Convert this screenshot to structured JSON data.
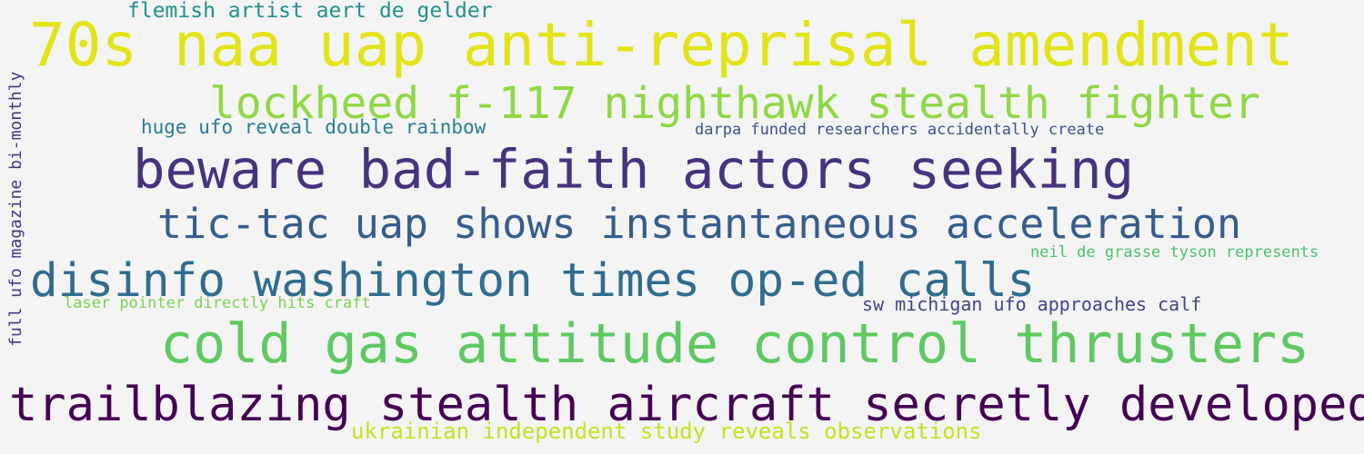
{
  "words": [
    {
      "text": "70s naa uap anti-reprisal amendment",
      "color": "#e2e418"
    },
    {
      "text": "lockheed f-117 nighthawk stealth fighter",
      "color": "#8fd744"
    },
    {
      "text": "beware bad-faith actors seeking",
      "color": "#46327e"
    },
    {
      "text": "tic-tac uap shows instantaneous acceleration",
      "color": "#365c8d"
    },
    {
      "text": "disinfo washington times op-ed calls",
      "color": "#2f6c8e"
    },
    {
      "text": "cold gas attitude control thrusters",
      "color": "#5ec962"
    },
    {
      "text": "trailblazing stealth aircraft secretly developed",
      "color": "#440154"
    },
    {
      "text": "flemish artist aert de gelder",
      "color": "#21918c"
    },
    {
      "text": "huge ufo reveal double rainbow",
      "color": "#277f8e"
    },
    {
      "text": "darpa funded researchers accidentally create",
      "color": "#3b528b"
    },
    {
      "text": "neil de grasse tyson represents",
      "color": "#4ac16d"
    },
    {
      "text": "sw michigan ufo approaches calf",
      "color": "#414487"
    },
    {
      "text": "laser pointer directly hits craft",
      "color": "#7ad151"
    },
    {
      "text": "ukrainian independent study reveals observations",
      "color": "#c8e020"
    },
    {
      "text": "full ufo magazine bi-monthly",
      "color": "#48327e"
    }
  ]
}
